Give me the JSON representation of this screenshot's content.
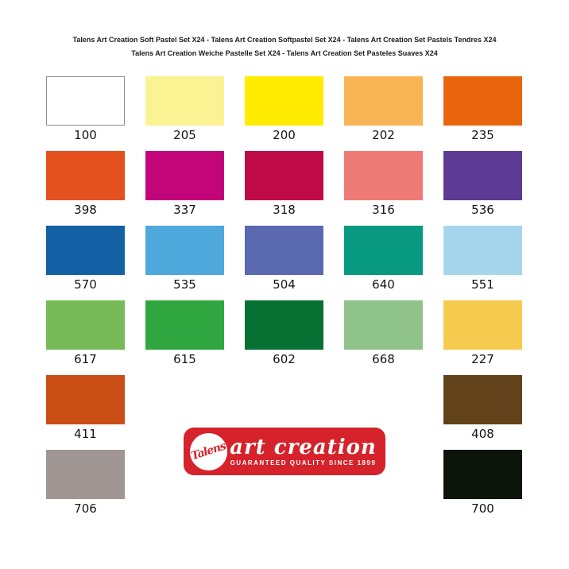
{
  "header": {
    "line1": "Talens Art Creation Soft Pastel Set X24 - Talens Art Creation Softpastel Set X24 - Talens Art Creation Set Pastels Tendres X24",
    "line2": "Talens Art Creation Weiche Pastelle Set X24 - Talens Art Creation Set Pasteles Suaves X24"
  },
  "palette": {
    "rows": [
      {
        "cells": [
          {
            "code": "100",
            "color": "#ffffff"
          },
          {
            "code": "205",
            "color": "#fbf293"
          },
          {
            "code": "200",
            "color": "#ffec00"
          },
          {
            "code": "202",
            "color": "#f8b455"
          },
          {
            "code": "235",
            "color": "#e8650e"
          }
        ]
      },
      {
        "cells": [
          {
            "code": "398",
            "color": "#e4511e"
          },
          {
            "code": "337",
            "color": "#c2067a"
          },
          {
            "code": "318",
            "color": "#be0a47"
          },
          {
            "code": "316",
            "color": "#ef7b76"
          },
          {
            "code": "536",
            "color": "#5d3a94"
          }
        ]
      },
      {
        "cells": [
          {
            "code": "570",
            "color": "#1360a4"
          },
          {
            "code": "535",
            "color": "#4fa8db"
          },
          {
            "code": "504",
            "color": "#5a69b0"
          },
          {
            "code": "640",
            "color": "#079a80"
          },
          {
            "code": "551",
            "color": "#a5d6ec"
          }
        ]
      },
      {
        "cells": [
          {
            "code": "617",
            "color": "#76bb58"
          },
          {
            "code": "615",
            "color": "#2fa63f"
          },
          {
            "code": "602",
            "color": "#077033"
          },
          {
            "code": "668",
            "color": "#90c28c"
          },
          {
            "code": "227",
            "color": "#f6cb4f"
          }
        ]
      },
      {
        "cells": [
          {
            "code": "411",
            "color": "#c94f17"
          },
          {
            "code": "408",
            "color": "#62421b"
          }
        ]
      },
      {
        "cells": [
          {
            "code": "706",
            "color": "#a09693"
          },
          {
            "code": "700",
            "color": "#0d140a"
          }
        ]
      }
    ]
  },
  "logo": {
    "brand_script": "Talens",
    "title": "art creation",
    "tagline": "GUARANTEED QUALITY SINCE 1899",
    "badge_color": "#d5222b"
  },
  "chart_data": {
    "type": "table",
    "title": "Talens Art Creation Soft Pastel Set X24 colour chart",
    "columns": [
      "code",
      "color_hex"
    ],
    "rows": [
      [
        "100",
        "#ffffff"
      ],
      [
        "205",
        "#fbf293"
      ],
      [
        "200",
        "#ffec00"
      ],
      [
        "202",
        "#f8b455"
      ],
      [
        "235",
        "#e8650e"
      ],
      [
        "398",
        "#e4511e"
      ],
      [
        "337",
        "#c2067a"
      ],
      [
        "318",
        "#be0a47"
      ],
      [
        "316",
        "#ef7b76"
      ],
      [
        "536",
        "#5d3a94"
      ],
      [
        "570",
        "#1360a4"
      ],
      [
        "535",
        "#4fa8db"
      ],
      [
        "504",
        "#5a69b0"
      ],
      [
        "640",
        "#079a80"
      ],
      [
        "551",
        "#a5d6ec"
      ],
      [
        "617",
        "#76bb58"
      ],
      [
        "615",
        "#2fa63f"
      ],
      [
        "602",
        "#077033"
      ],
      [
        "668",
        "#90c28c"
      ],
      [
        "227",
        "#f6cb4f"
      ],
      [
        "411",
        "#c94f17"
      ],
      [
        "408",
        "#62421b"
      ],
      [
        "706",
        "#a09693"
      ],
      [
        "700",
        "#0d140a"
      ]
    ],
    "layout": "6 rows x 5 columns; rows 5 and 6 contain swatches only in columns 1 and 5 with brand badge centered between them"
  }
}
